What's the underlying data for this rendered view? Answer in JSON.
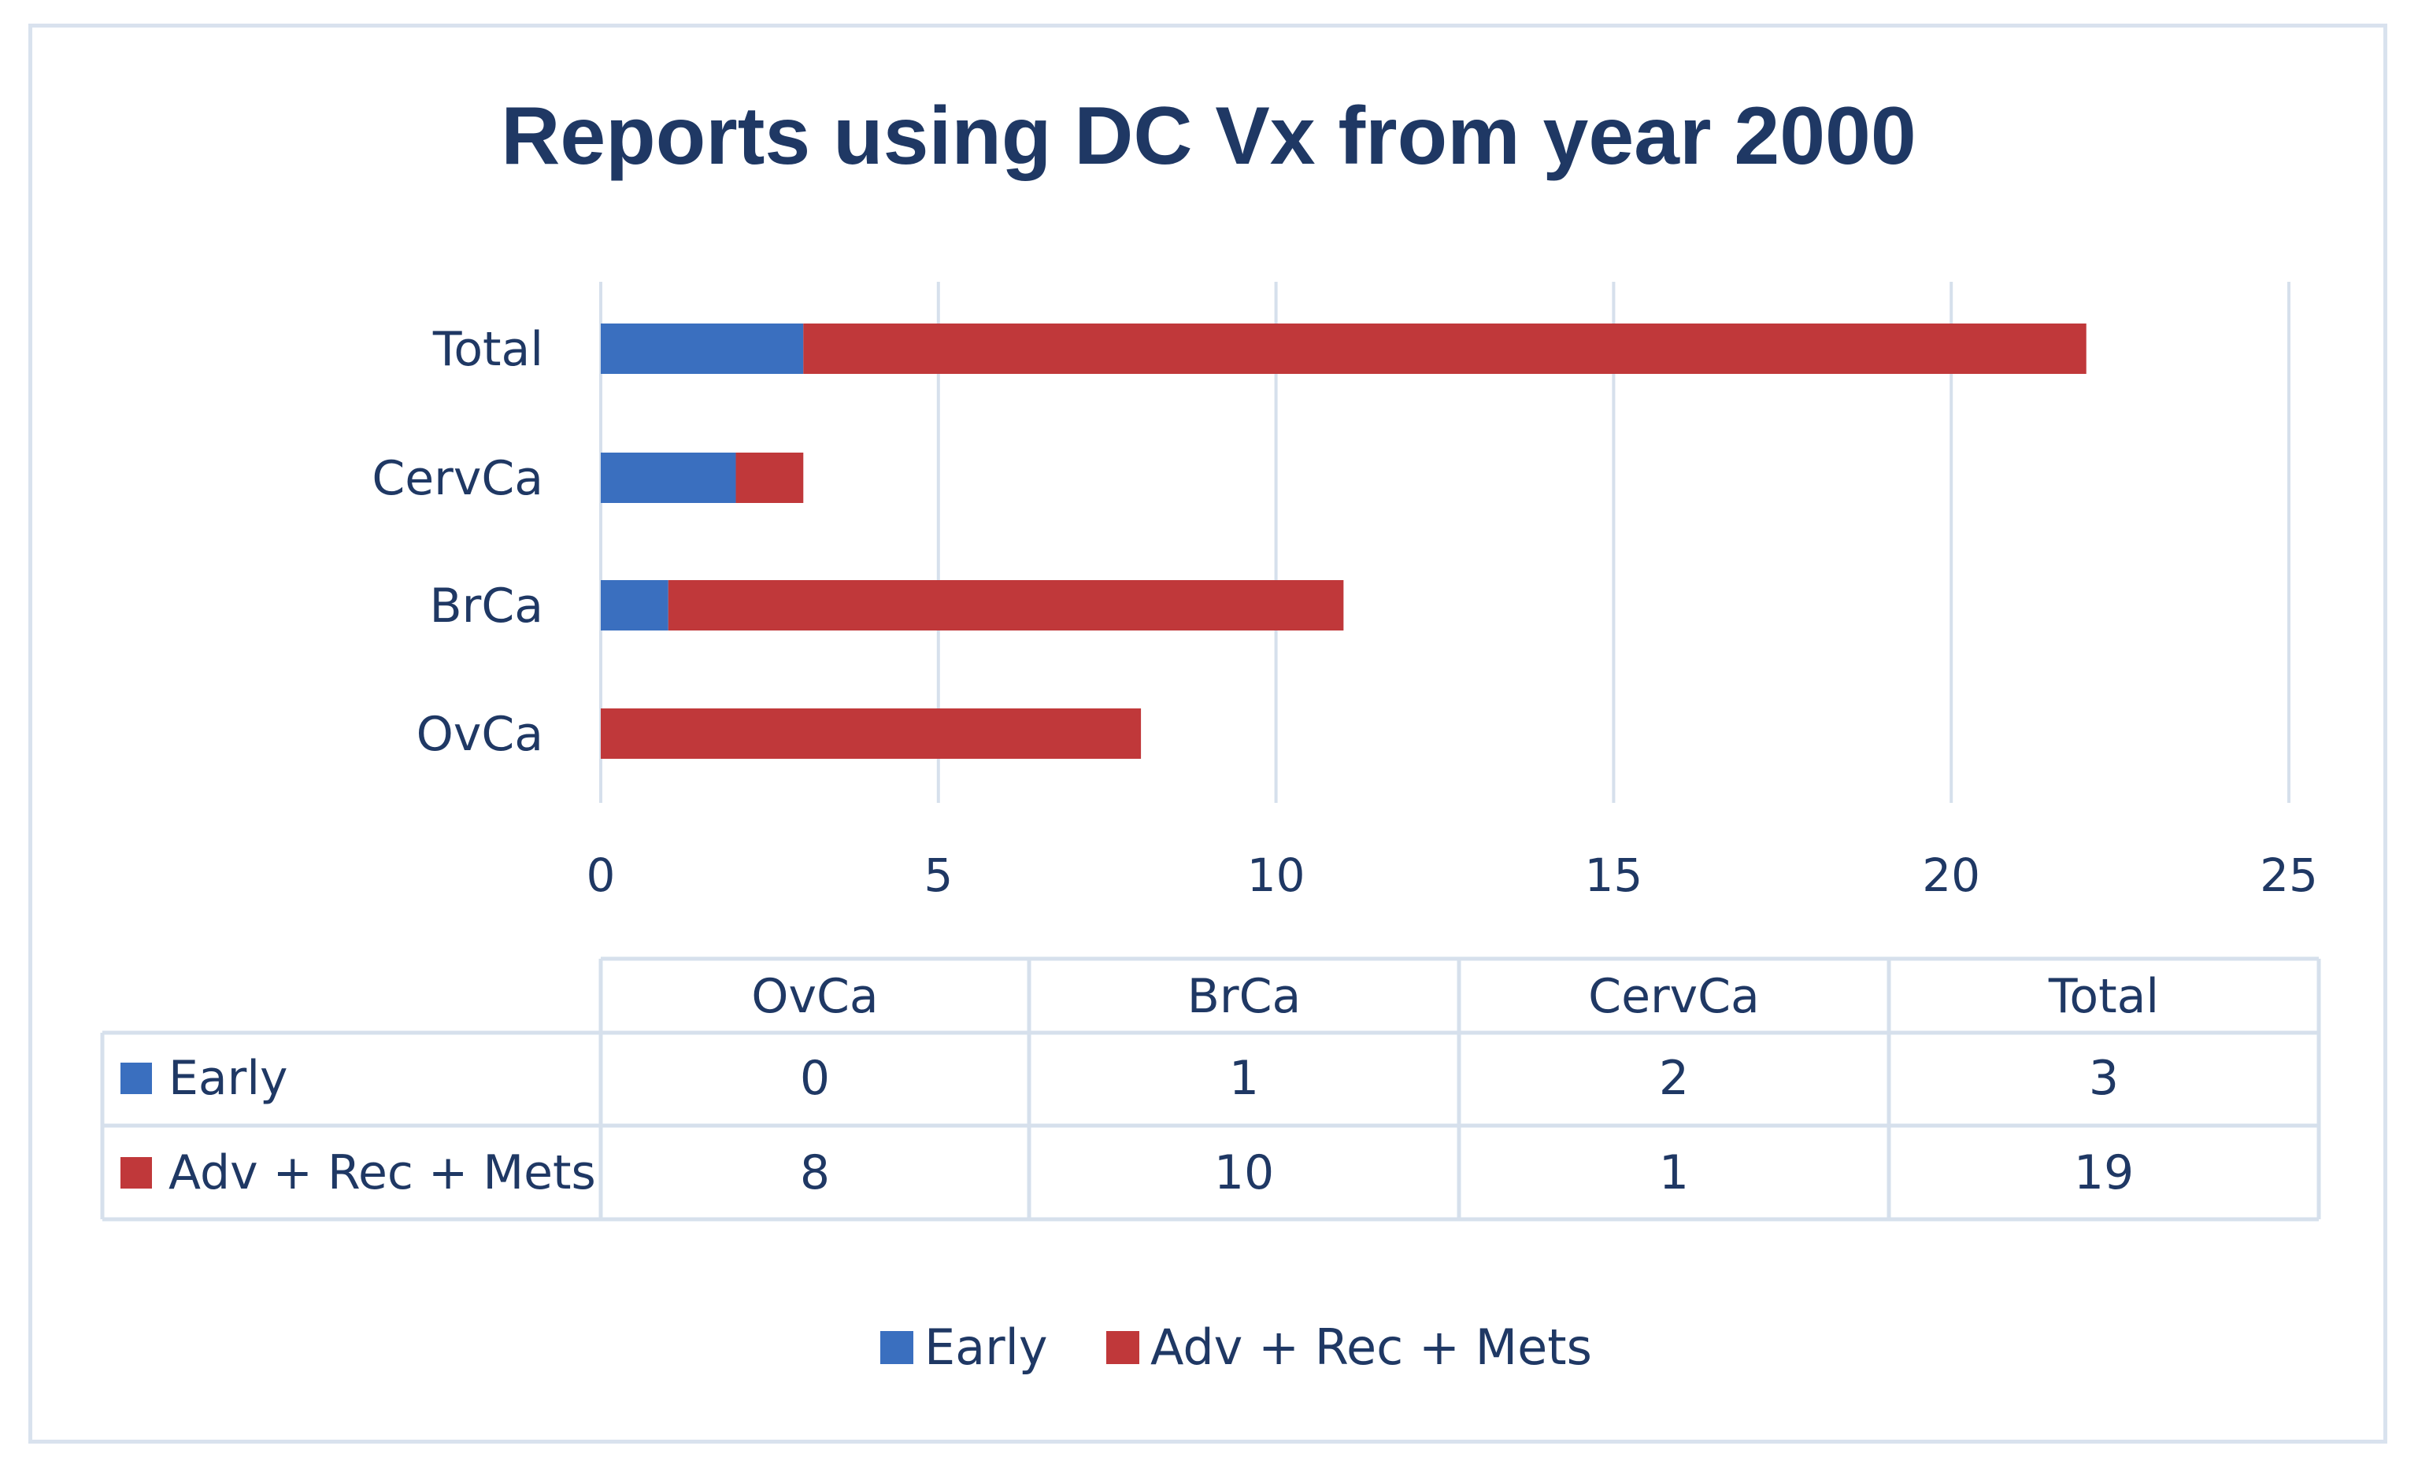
{
  "chart_data": {
    "type": "bar",
    "orientation": "horizontal",
    "stacked": true,
    "title": "Reports using DC Vx from year 2000",
    "categories": [
      "OvCa",
      "BrCa",
      "CervCa",
      "Total"
    ],
    "series": [
      {
        "name": "Early",
        "color": "#3a6fbf",
        "values": [
          0,
          1,
          2,
          3
        ]
      },
      {
        "name": "Adv + Rec + Mets",
        "color": "#c0383a",
        "values": [
          8,
          10,
          1,
          19
        ]
      }
    ],
    "xlim": [
      0,
      25
    ],
    "xticks": [
      "0",
      "5",
      "10",
      "15",
      "20",
      "25"
    ],
    "grid": true,
    "data_table": true,
    "legend_position": "bottom"
  }
}
